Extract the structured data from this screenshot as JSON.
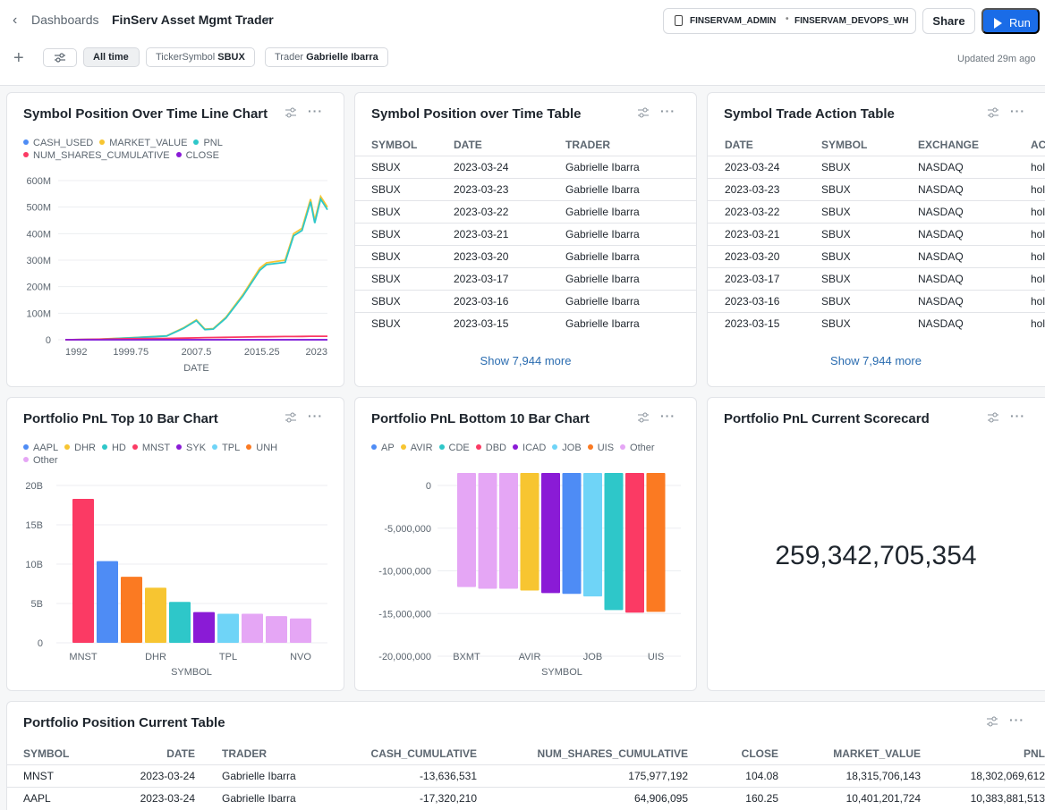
{
  "header": {
    "breadcrumb": "Dashboards",
    "title": "FinServ Asset Mgmt Trader",
    "role": "FINSERVAM_ADMIN",
    "warehouse": "FINSERVAM_DEVOPS_WH",
    "share_label": "Share",
    "run_label": "Run"
  },
  "filters": {
    "time_label": "All time",
    "ticker_label": "TickerSymbol",
    "ticker_value": "SBUX",
    "trader_label": "Trader",
    "trader_value": "Gabrielle Ibarra",
    "updated": "Updated 29m ago"
  },
  "colors": {
    "accent": "#1a6ce7",
    "link": "#2a6cb0"
  },
  "tiles": {
    "line_chart_title": "Symbol Position Over Time Line Chart",
    "pos_table_title": "Symbol Position over Time Table",
    "trade_table_title": "Symbol Trade Action Table",
    "top10_title": "Portfolio PnL Top 10 Bar Chart",
    "bottom10_title": "Portfolio PnL Bottom 10 Bar Chart",
    "scorecard_title": "Portfolio PnL Current Scorecard",
    "scorecard_value": "259,342,705,354",
    "current_table_title": "Portfolio Position Current Table"
  },
  "pos_table": {
    "headers": [
      "SYMBOL",
      "DATE",
      "TRADER"
    ],
    "rows": [
      [
        "SBUX",
        "2023-03-24",
        "Gabrielle Ibarra"
      ],
      [
        "SBUX",
        "2023-03-23",
        "Gabrielle Ibarra"
      ],
      [
        "SBUX",
        "2023-03-22",
        "Gabrielle Ibarra"
      ],
      [
        "SBUX",
        "2023-03-21",
        "Gabrielle Ibarra"
      ],
      [
        "SBUX",
        "2023-03-20",
        "Gabrielle Ibarra"
      ],
      [
        "SBUX",
        "2023-03-17",
        "Gabrielle Ibarra"
      ],
      [
        "SBUX",
        "2023-03-16",
        "Gabrielle Ibarra"
      ],
      [
        "SBUX",
        "2023-03-15",
        "Gabrielle Ibarra"
      ]
    ],
    "show_more": "Show 7,944 more"
  },
  "trade_table": {
    "headers": [
      "DATE",
      "SYMBOL",
      "EXCHANGE",
      "AC"
    ],
    "rows": [
      [
        "2023-03-24",
        "SBUX",
        "NASDAQ",
        "hol"
      ],
      [
        "2023-03-23",
        "SBUX",
        "NASDAQ",
        "hol"
      ],
      [
        "2023-03-22",
        "SBUX",
        "NASDAQ",
        "hol"
      ],
      [
        "2023-03-21",
        "SBUX",
        "NASDAQ",
        "hol"
      ],
      [
        "2023-03-20",
        "SBUX",
        "NASDAQ",
        "hol"
      ],
      [
        "2023-03-17",
        "SBUX",
        "NASDAQ",
        "hol"
      ],
      [
        "2023-03-16",
        "SBUX",
        "NASDAQ",
        "hol"
      ],
      [
        "2023-03-15",
        "SBUX",
        "NASDAQ",
        "hol"
      ]
    ],
    "show_more": "Show 7,944 more"
  },
  "current_table": {
    "headers": [
      "SYMBOL",
      "DATE",
      "TRADER",
      "CASH_CUMULATIVE",
      "NUM_SHARES_CUMULATIVE",
      "CLOSE",
      "MARKET_VALUE",
      "PNL"
    ],
    "rows": [
      [
        "MNST",
        "2023-03-24",
        "Gabrielle Ibarra",
        "-13,636,531",
        "175,977,192",
        "104.08",
        "18,315,706,143",
        "18,302,069,612"
      ],
      [
        "AAPL",
        "2023-03-24",
        "Gabrielle Ibarra",
        "-17,320,210",
        "64,906,095",
        "160.25",
        "10,401,201,724",
        "10,383,881,513"
      ]
    ]
  },
  "chart_data": [
    {
      "type": "line",
      "x_values": [
        1992,
        1996,
        2000,
        2004,
        2006,
        2007.5,
        2008.5,
        2009.5,
        2011,
        2013,
        2015,
        2015.8,
        2018,
        2019,
        2020,
        2021,
        2021.5,
        2022.2,
        2023
      ],
      "xlabel": "DATE",
      "x_ticks": [
        "1992",
        "1999.75",
        "2007.5",
        "2015.25",
        "2023"
      ],
      "y_ticks": [
        "0",
        "100M",
        "200M",
        "300M",
        "400M",
        "500M",
        "600M"
      ],
      "ylim": [
        0,
        600000000
      ],
      "legend_position": "top",
      "series": [
        {
          "name": "CASH_USED",
          "color": "#4e8cf5",
          "values": [
            0,
            0,
            0,
            0,
            0,
            0,
            0,
            0,
            0,
            0,
            0,
            0,
            0,
            0,
            0,
            0,
            0,
            0,
            0
          ]
        },
        {
          "name": "MARKET_VALUE",
          "color": "#f7c531",
          "values": [
            0,
            2000000,
            8000000,
            15000000,
            45000000,
            75000000,
            40000000,
            42000000,
            85000000,
            170000000,
            270000000,
            290000000,
            300000000,
            400000000,
            420000000,
            530000000,
            450000000,
            540000000,
            500000000
          ]
        },
        {
          "name": "PNL",
          "color": "#2ec7c9",
          "values": [
            0,
            1800000,
            7500000,
            14000000,
            43000000,
            72000000,
            38000000,
            40000000,
            82000000,
            165000000,
            262000000,
            283000000,
            292000000,
            392000000,
            412000000,
            520000000,
            440000000,
            530000000,
            490000000
          ]
        },
        {
          "name": "NUM_SHARES_CUMULATIVE",
          "color": "#fb3a64",
          "values": [
            0,
            2000000,
            4000000,
            5000000,
            6000000,
            7000000,
            8000000,
            8500000,
            9000000,
            10000000,
            11000000,
            11000000,
            12000000,
            12000000,
            12500000,
            13000000,
            13000000,
            13000000,
            13000000
          ]
        },
        {
          "name": "CLOSE",
          "color": "#8a1bd6",
          "values": [
            0,
            0,
            0,
            0,
            0,
            0,
            0,
            0,
            0,
            0,
            0,
            0,
            0,
            0,
            0,
            0,
            0,
            0,
            0
          ]
        }
      ]
    },
    {
      "type": "bar",
      "xlabel": "SYMBOL",
      "x_tick_labels": [
        "MNST",
        "DHR",
        "TPL",
        "NVO"
      ],
      "y_ticks": [
        "0",
        "5B",
        "10B",
        "15B",
        "20B"
      ],
      "ylim": [
        0,
        20000000000
      ],
      "legend": [
        {
          "name": "AAPL",
          "color": "#4e8cf5"
        },
        {
          "name": "DHR",
          "color": "#f7c531"
        },
        {
          "name": "HD",
          "color": "#2ec7c9"
        },
        {
          "name": "MNST",
          "color": "#fb3a64"
        },
        {
          "name": "SYK",
          "color": "#8a1bd6"
        },
        {
          "name": "TPL",
          "color": "#6fd4f7"
        },
        {
          "name": "UNH",
          "color": "#fb7a22"
        },
        {
          "name": "Other",
          "color": "#e5a6f5"
        }
      ],
      "bars": [
        {
          "color": "#fb3a64",
          "value": 18302069612
        },
        {
          "color": "#4e8cf5",
          "value": 10383881513
        },
        {
          "color": "#fb7a22",
          "value": 8400000000
        },
        {
          "color": "#f7c531",
          "value": 7000000000
        },
        {
          "color": "#2ec7c9",
          "value": 5200000000
        },
        {
          "color": "#8a1bd6",
          "value": 3900000000
        },
        {
          "color": "#6fd4f7",
          "value": 3700000000
        },
        {
          "color": "#e5a6f5",
          "value": 3700000000
        },
        {
          "color": "#e5a6f5",
          "value": 3400000000
        },
        {
          "color": "#e5a6f5",
          "value": 3100000000
        }
      ]
    },
    {
      "type": "bar",
      "xlabel": "SYMBOL",
      "x_tick_labels": [
        "BXMT",
        "AVIR",
        "JOB",
        "UIS"
      ],
      "y_ticks": [
        "0",
        "-5,000,000",
        "-10,000,000",
        "-15,000,000",
        "-20,000,000"
      ],
      "ylim": [
        -20000000,
        0
      ],
      "legend": [
        {
          "name": "AP",
          "color": "#4e8cf5"
        },
        {
          "name": "AVIR",
          "color": "#f7c531"
        },
        {
          "name": "CDE",
          "color": "#2ec7c9"
        },
        {
          "name": "DBD",
          "color": "#fb3a64"
        },
        {
          "name": "ICAD",
          "color": "#8a1bd6"
        },
        {
          "name": "JOB",
          "color": "#6fd4f7"
        },
        {
          "name": "UIS",
          "color": "#fb7a22"
        },
        {
          "name": "Other",
          "color": "#e5a6f5"
        }
      ],
      "bars": [
        {
          "color": "#e5a6f5",
          "value": -11900000
        },
        {
          "color": "#e5a6f5",
          "value": -12100000
        },
        {
          "color": "#e5a6f5",
          "value": -12100000
        },
        {
          "color": "#f7c531",
          "value": -12300000
        },
        {
          "color": "#8a1bd6",
          "value": -12600000
        },
        {
          "color": "#4e8cf5",
          "value": -12700000
        },
        {
          "color": "#6fd4f7",
          "value": -13000000
        },
        {
          "color": "#2ec7c9",
          "value": -14600000
        },
        {
          "color": "#fb3a64",
          "value": -14900000
        },
        {
          "color": "#fb7a22",
          "value": -14800000
        }
      ]
    }
  ]
}
